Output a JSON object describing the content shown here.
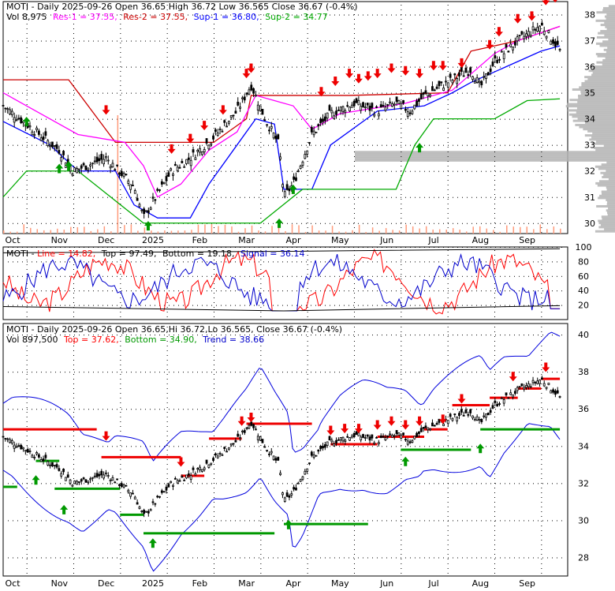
{
  "colors": {
    "background": "#ffffff",
    "frame": "#000000",
    "grid": "#000000",
    "bar_up": "#000000",
    "res_line": "#ff00ff",
    "res2_line": "#cc0000",
    "sup1_line": "#0000ff",
    "sup2_line": "#00aa00",
    "volume_profile": "#b4b4b4",
    "volume_bar": "#ff9a7a",
    "osc_line": "#ff0000",
    "osc_signal": "#0000cc",
    "osc_bound": "#000000",
    "trend_red": "#ee0000",
    "trend_green": "#009900",
    "band": "#0000dd",
    "arrow_down": "#ee0000",
    "arrow_up": "#009900"
  },
  "top_panel": {
    "header1_ticker": "MOTI - Daily 2025-09-26 Open 36.65  High 36.72  Low 36.565  Close 36.67 (-0.4%)",
    "header2_vol": "Vol 8,975",
    "header2_res1": "Res-1 = 37.55,",
    "header2_res2": "Res-2 = 37.55,",
    "header2_sup1": "Sup-1 = 36.80,",
    "header2_sup2": "Sup-2 = 34.77"
  },
  "mid_panel": {
    "header_ticker": "MOTI - ",
    "header_line": "Line = 14.82,",
    "header_top": "Top = 97.49,",
    "header_bottom": "Bottom = 19.18,",
    "header_signal": "Signal = 36.14"
  },
  "bottom_panel": {
    "header1": "MOTI - Daily 2025-09-26 Open 36.65,Hi 36.72,Lo 36.565, Close 36.67 (-0.4%)",
    "header2_vol": "Vol 897,500",
    "header2_top": "Top = 37.62,",
    "header2_bottom": "Bottom = 34.90,",
    "header2_trend": "Trend = 38.66"
  },
  "x_axis_labels": [
    "Oct",
    "Nov",
    "Dec",
    "2025",
    "Feb",
    "Mar",
    "Apr",
    "May",
    "Jun",
    "Jul",
    "Aug",
    "Sep"
  ],
  "chart_data": [
    {
      "type": "candlestick",
      "title": "MOTI - Daily 2025-09-26 Open 36.65  High 36.72  Low 36.565  Close 36.67 (-0.4%)",
      "ylim": [
        29.6,
        38.5
      ],
      "y_ticks": [
        30,
        31,
        32,
        33,
        34,
        35,
        36,
        37,
        38
      ],
      "x_ticks": [
        "Oct",
        "Nov",
        "Dec",
        "2025",
        "Feb",
        "Mar",
        "Apr",
        "May",
        "Jun",
        "Jul",
        "Aug",
        "Sep"
      ],
      "close_keypoints": [
        {
          "month": 0.0,
          "close": 34.5
        },
        {
          "month": 0.5,
          "close": 33.8
        },
        {
          "month": 1.2,
          "close": 32.8
        },
        {
          "month": 1.5,
          "close": 32.0
        },
        {
          "month": 2.2,
          "close": 32.5
        },
        {
          "month": 2.8,
          "close": 31.4
        },
        {
          "month": 3.0,
          "close": 30.2
        },
        {
          "month": 3.2,
          "close": 30.8
        },
        {
          "month": 3.6,
          "close": 32.0
        },
        {
          "month": 4.0,
          "close": 32.5
        },
        {
          "month": 4.5,
          "close": 33.3
        },
        {
          "month": 5.0,
          "close": 34.3
        },
        {
          "month": 5.3,
          "close": 35.3
        },
        {
          "month": 5.6,
          "close": 34.0
        },
        {
          "month": 5.9,
          "close": 33.0
        },
        {
          "month": 6.0,
          "close": 31.0
        },
        {
          "month": 6.2,
          "close": 31.5
        },
        {
          "month": 6.6,
          "close": 33.4
        },
        {
          "month": 7.0,
          "close": 34.2
        },
        {
          "month": 7.5,
          "close": 34.6
        },
        {
          "month": 8.0,
          "close": 34.3
        },
        {
          "month": 8.4,
          "close": 34.6
        },
        {
          "month": 8.7,
          "close": 34.3
        },
        {
          "month": 9.0,
          "close": 34.9
        },
        {
          "month": 9.6,
          "close": 35.5
        },
        {
          "month": 10.0,
          "close": 35.9
        },
        {
          "month": 10.2,
          "close": 35.2
        },
        {
          "month": 10.5,
          "close": 36.2
        },
        {
          "month": 11.0,
          "close": 37.0
        },
        {
          "month": 11.5,
          "close": 37.6
        },
        {
          "month": 11.9,
          "close": 36.67
        }
      ],
      "series": [
        {
          "name": "Res-1",
          "value": 37.55
        },
        {
          "name": "Res-2",
          "value": 37.55
        },
        {
          "name": "Sup-1",
          "value": 36.8
        },
        {
          "name": "Sup-2",
          "value": 34.77
        }
      ],
      "volume": 8975
    },
    {
      "type": "line",
      "title": "MOTI - Line = 14.82, Top = 97.49, Bottom = 19.18, Signal = 36.14",
      "ylim": [
        0,
        100
      ],
      "y_ticks": [
        20,
        40,
        60,
        80,
        100
      ],
      "series": [
        {
          "name": "Line",
          "value": 14.82
        },
        {
          "name": "Top",
          "value": 97.49
        },
        {
          "name": "Bottom",
          "value": 19.18
        },
        {
          "name": "Signal",
          "value": 36.14
        }
      ]
    },
    {
      "type": "candlestick",
      "title": "MOTI - Daily 2025-09-26 Open 36.65,Hi 36.72,Lo 36.565, Close 36.67 (-0.4%)",
      "ylim": [
        27.0,
        40.6
      ],
      "y_ticks": [
        28,
        30,
        32,
        34,
        36,
        38,
        40
      ],
      "series": [
        {
          "name": "Top",
          "value": 37.62
        },
        {
          "name": "Bottom",
          "value": 34.9
        },
        {
          "name": "Trend",
          "value": 38.66
        }
      ],
      "volume": 897500
    }
  ]
}
